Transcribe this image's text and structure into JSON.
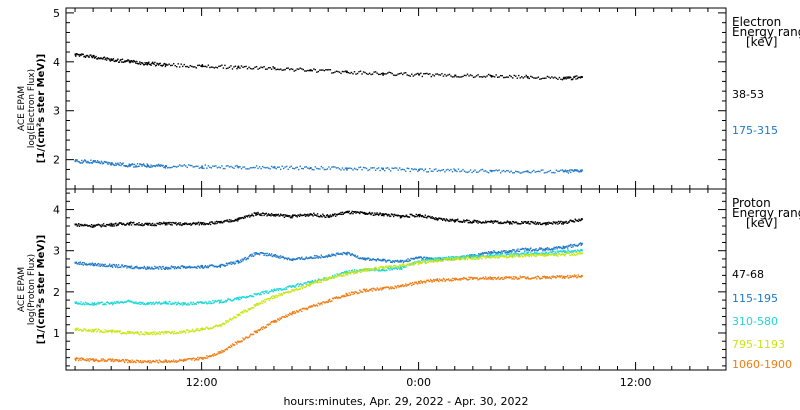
{
  "chart_data": [
    {
      "type": "scatter",
      "panel": "electron",
      "ylabel_lines": [
        "ACE EPAM",
        "log(Electron Flux)",
        "[1/(cm²s ster MeV)]"
      ],
      "legend_title_lines": [
        "Electron",
        "Energy range",
        "[keV]"
      ],
      "ylim": [
        1.4,
        5.1
      ],
      "yticks": [
        2,
        3,
        4,
        5
      ],
      "xlim": [
        4.5,
        41
      ],
      "grid": false,
      "series": [
        {
          "name": "38-53",
          "color": "#000000",
          "x": [
            5.0,
            6.0,
            7.0,
            8.0,
            9.0,
            10.0,
            12.0,
            14.0,
            16.0,
            18.0,
            20.0,
            22.0,
            24.0,
            26.0,
            28.0,
            30.0,
            32.0,
            33.0
          ],
          "y": [
            4.16,
            4.12,
            4.05,
            4.02,
            3.98,
            3.95,
            3.92,
            3.9,
            3.88,
            3.84,
            3.8,
            3.77,
            3.75,
            3.73,
            3.72,
            3.7,
            3.67,
            3.7
          ]
        },
        {
          "name": "175-315",
          "color": "#1f78c8",
          "x": [
            5.0,
            6.0,
            7.0,
            8.0,
            9.0,
            10.0,
            12.0,
            14.0,
            16.0,
            18.0,
            20.0,
            22.0,
            24.0,
            26.0,
            28.0,
            30.0,
            32.0,
            33.0
          ],
          "y": [
            1.98,
            1.97,
            1.93,
            1.9,
            1.89,
            1.88,
            1.87,
            1.86,
            1.85,
            1.84,
            1.83,
            1.82,
            1.8,
            1.79,
            1.78,
            1.77,
            1.77,
            1.79
          ]
        }
      ]
    },
    {
      "type": "scatter",
      "panel": "proton",
      "ylabel_lines": [
        "ACE EPAM",
        "log(Proton Flux)",
        "[1/(cm²s ster MeV)]"
      ],
      "legend_title_lines": [
        "Proton",
        "Energy range",
        "[keV]"
      ],
      "ylim": [
        0.1,
        4.5
      ],
      "yticks": [
        1,
        2,
        3,
        4
      ],
      "xlim": [
        4.5,
        41
      ],
      "grid": false,
      "xticks": [
        {
          "value": 12,
          "label": "12:00"
        },
        {
          "value": 24,
          "label": "0:00"
        },
        {
          "value": 36,
          "label": "12:00"
        }
      ],
      "xlabel": "hours:minutes, Apr. 29, 2022 - Apr. 30, 2022",
      "series": [
        {
          "name": "47-68",
          "color": "#000000",
          "x": [
            5.0,
            6.0,
            7.0,
            8.0,
            9.0,
            10.0,
            11.0,
            12.0,
            13.0,
            14.0,
            15.0,
            16.0,
            17.0,
            18.0,
            19.0,
            20.0,
            21.0,
            22.0,
            23.0,
            24.0,
            25.0,
            26.0,
            27.0,
            28.0,
            29.0,
            30.0,
            31.0,
            32.0,
            33.0
          ],
          "y": [
            3.65,
            3.62,
            3.65,
            3.68,
            3.65,
            3.68,
            3.66,
            3.68,
            3.7,
            3.78,
            3.92,
            3.88,
            3.85,
            3.9,
            3.85,
            3.95,
            3.92,
            3.9,
            3.85,
            3.88,
            3.78,
            3.75,
            3.72,
            3.72,
            3.7,
            3.7,
            3.68,
            3.7,
            3.78
          ]
        },
        {
          "name": "115-195",
          "color": "#1f78c8",
          "x": [
            5.0,
            6.0,
            7.0,
            8.0,
            9.0,
            10.0,
            11.0,
            12.0,
            13.0,
            14.0,
            15.0,
            16.0,
            17.0,
            18.0,
            19.0,
            20.0,
            21.0,
            22.0,
            23.0,
            24.0,
            25.0,
            26.0,
            27.0,
            28.0,
            29.0,
            30.0,
            31.0,
            32.0,
            33.0
          ],
          "y": [
            2.72,
            2.68,
            2.65,
            2.62,
            2.6,
            2.6,
            2.62,
            2.62,
            2.65,
            2.75,
            2.95,
            2.9,
            2.8,
            2.85,
            2.9,
            2.95,
            2.82,
            2.78,
            2.75,
            2.85,
            2.8,
            2.82,
            2.9,
            2.98,
            3.0,
            3.05,
            3.05,
            3.1,
            3.18
          ]
        },
        {
          "name": "310-580",
          "color": "#1ed7d7",
          "x": [
            5.0,
            6.0,
            7.0,
            8.0,
            9.0,
            10.0,
            11.0,
            12.0,
            13.0,
            14.0,
            15.0,
            16.0,
            17.0,
            18.0,
            19.0,
            20.0,
            21.0,
            22.0,
            23.0,
            24.0,
            25.0,
            26.0,
            27.0,
            28.0,
            29.0,
            30.0,
            31.0,
            32.0,
            33.0
          ],
          "y": [
            1.75,
            1.72,
            1.74,
            1.78,
            1.72,
            1.75,
            1.72,
            1.75,
            1.78,
            1.85,
            1.95,
            2.05,
            2.15,
            2.25,
            2.35,
            2.5,
            2.55,
            2.55,
            2.6,
            2.75,
            2.82,
            2.85,
            2.88,
            2.9,
            2.92,
            2.95,
            2.95,
            3.0,
            3.02
          ]
        },
        {
          "name": "795-1193",
          "color": "#c8e614",
          "x": [
            5.0,
            6.0,
            7.0,
            8.0,
            9.0,
            10.0,
            11.0,
            12.0,
            13.0,
            14.0,
            15.0,
            16.0,
            17.0,
            18.0,
            19.0,
            20.0,
            21.0,
            22.0,
            23.0,
            24.0,
            25.0,
            26.0,
            27.0,
            28.0,
            29.0,
            30.0,
            31.0,
            32.0,
            33.0
          ],
          "y": [
            1.1,
            1.08,
            1.05,
            1.02,
            1.0,
            1.02,
            1.05,
            1.1,
            1.2,
            1.45,
            1.7,
            1.9,
            2.05,
            2.2,
            2.35,
            2.45,
            2.55,
            2.6,
            2.65,
            2.72,
            2.78,
            2.82,
            2.84,
            2.86,
            2.88,
            2.9,
            2.92,
            2.92,
            2.95
          ]
        },
        {
          "name": "1060-1900",
          "color": "#f07d14",
          "x": [
            5.0,
            6.0,
            7.0,
            8.0,
            9.0,
            10.0,
            11.0,
            12.0,
            13.0,
            14.0,
            15.0,
            16.0,
            17.0,
            18.0,
            19.0,
            20.0,
            21.0,
            22.0,
            23.0,
            24.0,
            25.0,
            26.0,
            27.0,
            28.0,
            29.0,
            30.0,
            31.0,
            32.0,
            33.0
          ],
          "y": [
            0.38,
            0.36,
            0.35,
            0.33,
            0.32,
            0.33,
            0.35,
            0.4,
            0.55,
            0.8,
            1.05,
            1.3,
            1.5,
            1.65,
            1.8,
            1.95,
            2.05,
            2.1,
            2.15,
            2.25,
            2.3,
            2.32,
            2.34,
            2.35,
            2.36,
            2.36,
            2.37,
            2.38,
            2.4
          ]
        }
      ]
    }
  ]
}
